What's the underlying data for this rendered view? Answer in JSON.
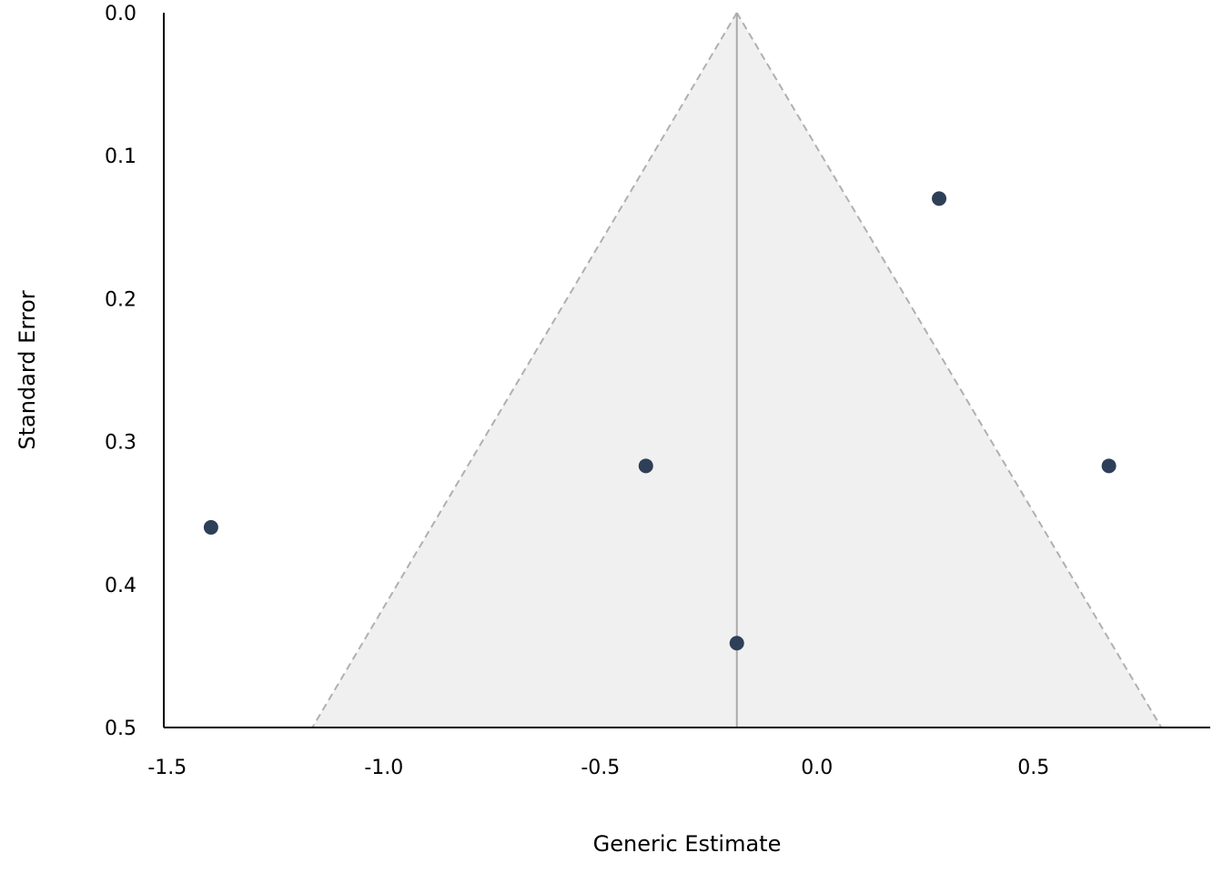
{
  "chart_data": {
    "type": "scatter",
    "subtype": "funnel",
    "title": "",
    "xlabel": "Generic Estimate",
    "ylabel": "Standard Error",
    "xlim": [
      -1.508,
      0.908
    ],
    "ylim": [
      0.0,
      0.5
    ],
    "y_inverted": true,
    "xticks": [
      "-1.5",
      "-1.0",
      "-0.5",
      "0.0",
      "0.5"
    ],
    "xtick_values": [
      -1.5,
      -1.0,
      -0.5,
      0.0,
      0.5
    ],
    "yticks": [
      "0.0",
      "0.1",
      "0.2",
      "0.3",
      "0.4",
      "0.5"
    ],
    "ytick_values": [
      0.0,
      0.1,
      0.2,
      0.3,
      0.4,
      0.5
    ],
    "pooled_estimate": -0.185,
    "funnel_z": 1.96,
    "points": [
      {
        "x": 0.282,
        "se": 0.13
      },
      {
        "x": -0.395,
        "se": 0.317
      },
      {
        "x": 0.674,
        "se": 0.317
      },
      {
        "x": -1.399,
        "se": 0.36
      },
      {
        "x": -0.185,
        "se": 0.441
      }
    ],
    "colors": {
      "point": "#2e3f58",
      "funnel_fill": "#f0f0f0",
      "funnel_line": "#b0b0b0",
      "center_line": "#aaaaaa"
    },
    "grid": false
  }
}
